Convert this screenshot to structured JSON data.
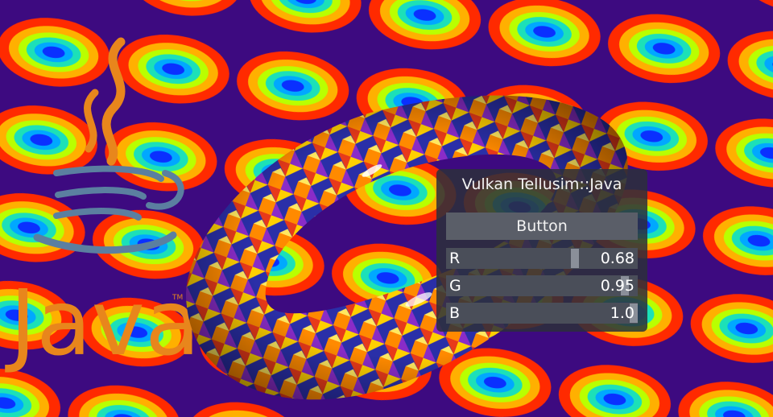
{
  "panel": {
    "title": "Vulkan Tellusim::Java",
    "button_label": "Button",
    "sliders": [
      {
        "label": "R",
        "value": "0.68",
        "level": 0.68
      },
      {
        "label": "G",
        "value": "0.95",
        "level": 0.95
      },
      {
        "label": "B",
        "value": "1.0",
        "level": 1.0
      }
    ]
  },
  "logo": {
    "text": "Java",
    "trademark": "TM"
  },
  "colors": {
    "logo_orange": "#e8861c",
    "logo_blue": "#5b7fa0",
    "panel_bg": "#2c303a"
  }
}
